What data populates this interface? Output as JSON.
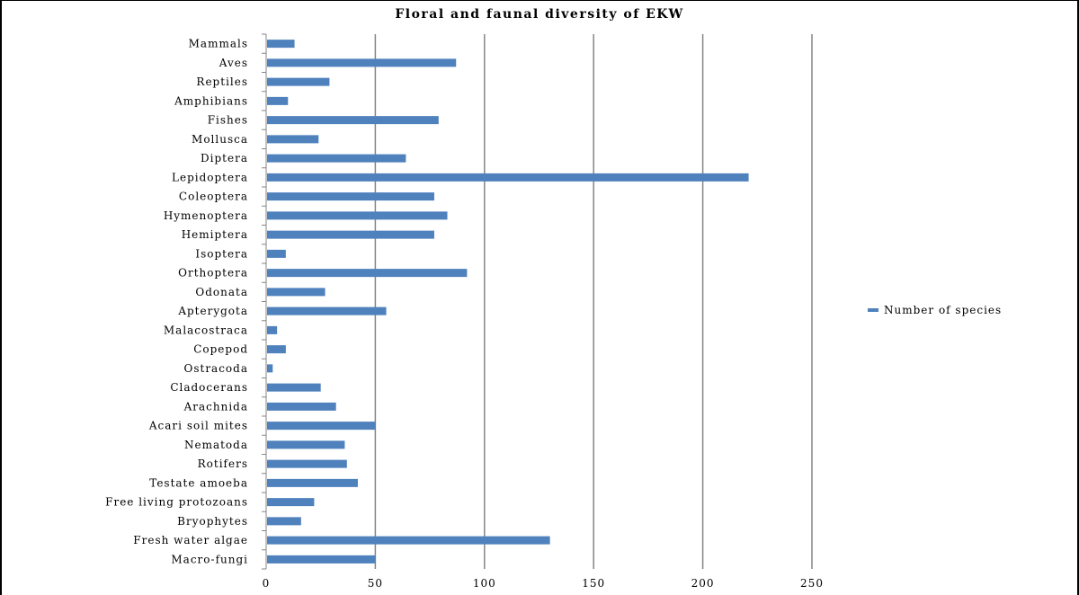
{
  "chart_data": {
    "type": "bar",
    "orientation": "horizontal",
    "title": "Floral and faunal diversity of EKW",
    "categories": [
      "Mammals",
      "Aves",
      "Reptiles",
      "Amphibians",
      "Fishes",
      "Mollusca",
      "Diptera",
      "Lepidoptera",
      "Coleoptera",
      "Hymenoptera",
      "Hemiptera",
      "Isoptera",
      "Orthoptera",
      "Odonata",
      "Apterygota",
      "Malacostraca",
      "Copepod",
      "Ostracoda",
      "Cladocerans",
      "Arachnida",
      "Acari soil mites",
      "Nematoda",
      "Rotifers",
      "Testate amoeba",
      "Free living protozoans",
      "Bryophytes",
      "Fresh water algae",
      "Macro-fungi"
    ],
    "series": [
      {
        "name": "Number of species",
        "values": [
          13,
          87,
          29,
          10,
          79,
          24,
          64,
          221,
          77,
          83,
          77,
          9,
          92,
          27,
          55,
          5,
          9,
          3,
          25,
          32,
          50,
          36,
          37,
          42,
          22,
          16,
          130,
          50
        ]
      }
    ],
    "xlim": [
      0,
      250
    ],
    "xticks": [
      "0",
      "50",
      "100",
      "150",
      "200",
      "250"
    ],
    "grid": "vertical",
    "legend": "right",
    "bar_color": "#4f81bd"
  }
}
